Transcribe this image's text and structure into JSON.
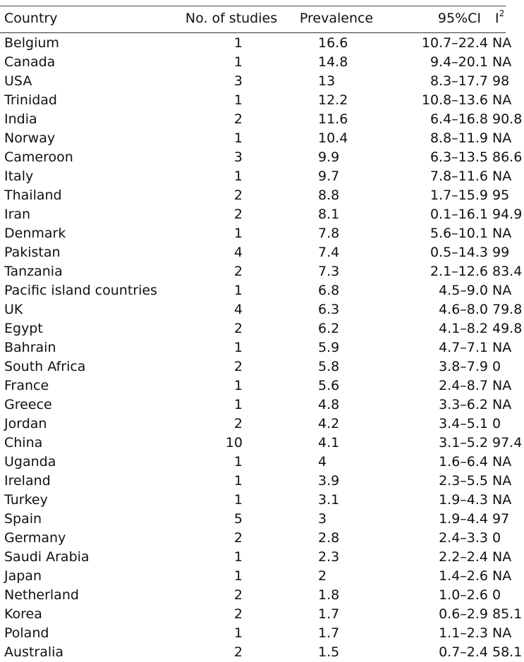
{
  "table": {
    "headers": {
      "country": "Country",
      "studies": "No. of studies",
      "prevalence": "Prevalence",
      "ci": "95%CI",
      "i2_base": "I",
      "i2_sup": "2"
    },
    "rows": [
      {
        "country": "Belgium",
        "studies": "1",
        "prevalence": "16.6",
        "ci": "10.7–22.4",
        "i2": "NA"
      },
      {
        "country": "Canada",
        "studies": "1",
        "prevalence": "14.8",
        "ci": "9.4–20.1",
        "i2": "NA"
      },
      {
        "country": "USA",
        "studies": "3",
        "prevalence": "13",
        "ci": "8.3–17.7",
        "i2": "98"
      },
      {
        "country": "Trinidad",
        "studies": "1",
        "prevalence": "12.2",
        "ci": "10.8–13.6",
        "i2": "NA"
      },
      {
        "country": "India",
        "studies": "2",
        "prevalence": "11.6",
        "ci": "6.4–16.8",
        "i2": "90.8"
      },
      {
        "country": "Norway",
        "studies": "1",
        "prevalence": "10.4",
        "ci": "8.8–11.9",
        "i2": "NA"
      },
      {
        "country": "Cameroon",
        "studies": "3",
        "prevalence": "9.9",
        "ci": "6.3–13.5",
        "i2": "86.6"
      },
      {
        "country": "Italy",
        "studies": "1",
        "prevalence": "9.7",
        "ci": "7.8–11.6",
        "i2": "NA"
      },
      {
        "country": "Thailand",
        "studies": "2",
        "prevalence": "8.8",
        "ci": "1.7–15.9",
        "i2": "95"
      },
      {
        "country": "Iran",
        "studies": "2",
        "prevalence": "8.1",
        "ci": "0.1–16.1",
        "i2": "94.9"
      },
      {
        "country": "Denmark",
        "studies": "1",
        "prevalence": "7.8",
        "ci": "5.6–10.1",
        "i2": "NA"
      },
      {
        "country": "Pakistan",
        "studies": "4",
        "prevalence": "7.4",
        "ci": "0.5–14.3",
        "i2": "99"
      },
      {
        "country": "Tanzania",
        "studies": "2",
        "prevalence": "7.3",
        "ci": "2.1–12.6",
        "i2": "83.4"
      },
      {
        "country": "Pacific island countries",
        "studies": "1",
        "prevalence": "6.8",
        "ci": "4.5–9.0",
        "i2": "NA"
      },
      {
        "country": "UK",
        "studies": "4",
        "prevalence": "6.3",
        "ci": "4.6–8.0",
        "i2": "79.8"
      },
      {
        "country": "Egypt",
        "studies": "2",
        "prevalence": "6.2",
        "ci": "4.1–8.2",
        "i2": "49.8"
      },
      {
        "country": "Bahrain",
        "studies": "1",
        "prevalence": "5.9",
        "ci": "4.7–7.1",
        "i2": "NA"
      },
      {
        "country": "South Africa",
        "studies": "2",
        "prevalence": "5.8",
        "ci": "3.8–7.9",
        "i2": "0"
      },
      {
        "country": "France",
        "studies": "1",
        "prevalence": "5.6",
        "ci": "2.4–8.7",
        "i2": "NA"
      },
      {
        "country": "Greece",
        "studies": "1",
        "prevalence": "4.8",
        "ci": "3.3–6.2",
        "i2": "NA"
      },
      {
        "country": "Jordan",
        "studies": "2",
        "prevalence": "4.2",
        "ci": "3.4–5.1",
        "i2": "0"
      },
      {
        "country": "China",
        "studies": "10",
        "prevalence": "4.1",
        "ci": "3.1–5.2",
        "i2": "97.4"
      },
      {
        "country": "Uganda",
        "studies": "1",
        "prevalence": "4",
        "ci": "1.6–6.4",
        "i2": "NA"
      },
      {
        "country": "Ireland",
        "studies": "1",
        "prevalence": "3.9",
        "ci": "2.3–5.5",
        "i2": "NA"
      },
      {
        "country": "Turkey",
        "studies": "1",
        "prevalence": "3.1",
        "ci": "1.9–4.3",
        "i2": "NA"
      },
      {
        "country": "Spain",
        "studies": "5",
        "prevalence": "3",
        "ci": "1.9–4.4",
        "i2": "97"
      },
      {
        "country": "Germany",
        "studies": "2",
        "prevalence": "2.8",
        "ci": "2.4–3.3",
        "i2": "0"
      },
      {
        "country": "Saudi Arabia",
        "studies": "1",
        "prevalence": "2.3",
        "ci": "2.2–2.4",
        "i2": "NA"
      },
      {
        "country": "Japan",
        "studies": "1",
        "prevalence": "2",
        "ci": "1.4–2.6",
        "i2": "NA"
      },
      {
        "country": "Netherland",
        "studies": "2",
        "prevalence": "1.8",
        "ci": "1.0–2.6",
        "i2": "0"
      },
      {
        "country": "Korea",
        "studies": "2",
        "prevalence": "1.7",
        "ci": "0.6–2.9",
        "i2": "85.1"
      },
      {
        "country": "Poland",
        "studies": "1",
        "prevalence": "1.7",
        "ci": "1.1–2.3",
        "i2": "NA"
      },
      {
        "country": "Australia",
        "studies": "2",
        "prevalence": "1.5",
        "ci": "0.7–2.4",
        "i2": "58.1"
      }
    ]
  }
}
